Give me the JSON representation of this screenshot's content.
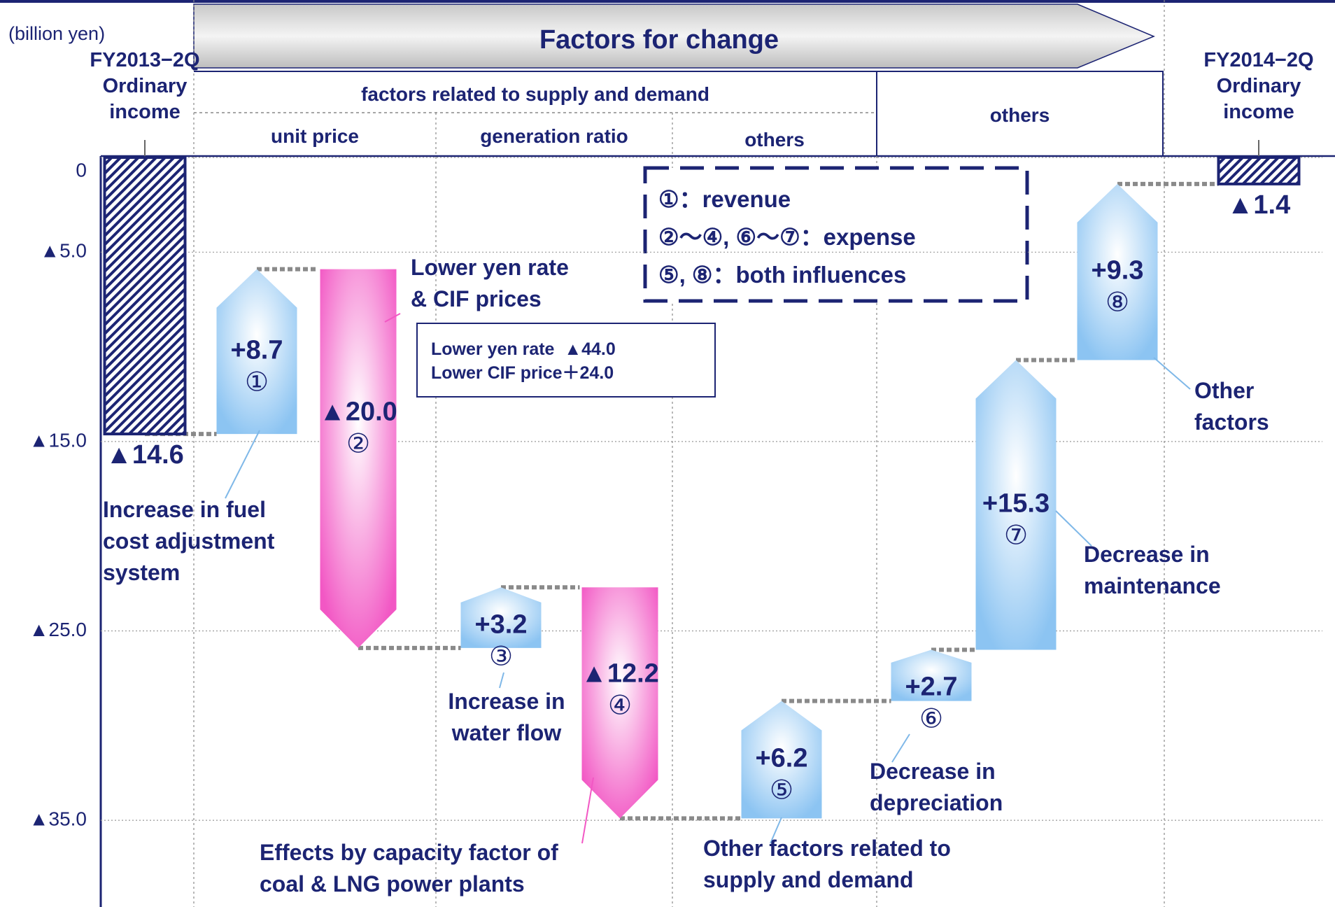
{
  "chart_data": {
    "type": "waterfall",
    "title": "Factors for change",
    "y_unit": "(billion yen)",
    "categories": [
      "FY2013−2Q\nOrdinary\nincome",
      null,
      null,
      null,
      null,
      null,
      null,
      null,
      null,
      "FY2014−2Q\nOrdinary\nincome"
    ],
    "measure": [
      "total",
      "relative",
      "relative",
      "relative",
      "relative",
      "relative",
      "relative",
      "relative",
      "relative",
      "total"
    ],
    "values": [
      -14.6,
      8.7,
      -20.0,
      3.2,
      -12.2,
      6.2,
      2.7,
      15.3,
      9.3,
      -1.4
    ],
    "value_labels": [
      "▲14.6",
      "+8.7",
      "▲20.0",
      "+3.2",
      "▲12.2",
      "+6.2",
      "+2.7",
      "+15.3",
      "+9.3",
      "▲1.4"
    ],
    "step_labels": [
      null,
      "①",
      "②",
      "③",
      "④",
      "⑤",
      "⑥",
      "⑦",
      "⑧",
      null
    ],
    "colors": {
      "total": "#1c2473",
      "increase": "#8cc4f2",
      "decrease": "#f257c4"
    },
    "ylim": [
      -39.5,
      0
    ],
    "yticks": [
      0,
      {
        "value": -5,
        "label": "▲5.0"
      },
      {
        "value": -15,
        "label": "▲15.0"
      },
      {
        "value": -25,
        "label": "▲25.0"
      },
      {
        "value": -35,
        "label": "▲35.0"
      }
    ],
    "grid": true,
    "column_groups": [
      "factors related to supply and demand",
      "others"
    ],
    "subcolumns": [
      "unit price",
      "generation ratio",
      "others"
    ],
    "legend_box": [
      "①：revenue",
      "②〜④, ⑥〜⑦：expense",
      "⑤, ⑧：both influences"
    ],
    "note_box": [
      "Lower yen rate  ▲44.0",
      "Lower CIF price＋24.0"
    ],
    "annotations": [
      "Lower yen rate\n& CIF prices",
      "Increase in fuel\ncost adjustment\nsystem",
      "Increase in\nwater flow",
      "Effects by capacity factor of\ncoal & LNG power plants",
      "Other factors related to\nsupply and demand",
      "Decrease in\ndepreciation",
      "Decrease in\nmaintenance",
      "Other\nfactors"
    ]
  }
}
